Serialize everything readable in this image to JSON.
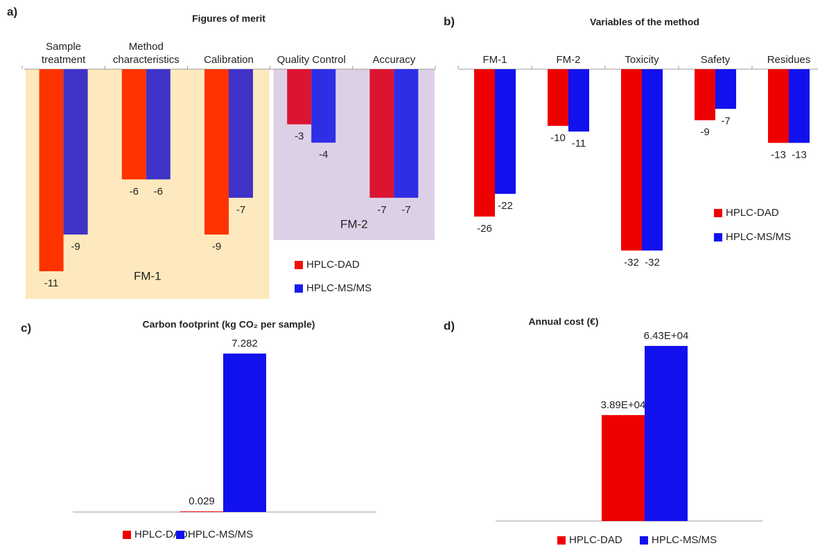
{
  "chart_data": [
    {
      "type": "bar",
      "panel_label": "a)",
      "title": "Figures of merit",
      "categories": [
        "Sample treatment",
        "Method characteristics",
        "Calibration",
        "Quality Control",
        "Accuracy"
      ],
      "groups": [
        {
          "label": "FM-1",
          "start": 0,
          "end": 2,
          "color": "#fde9bd"
        },
        {
          "label": "FM-2",
          "start": 3,
          "end": 4,
          "color": "#ddd0e6"
        }
      ],
      "series": [
        {
          "name": "HPLC-DAD",
          "color": "#ee1111",
          "colors": [
            "#ff3300",
            "#ff3300",
            "#ff3300",
            "#dc1432",
            "#dc1432"
          ],
          "values": [
            -11,
            -6,
            -9,
            -3,
            -7
          ]
        },
        {
          "name": "HPLC-MS/MS",
          "color": "#1a1aee",
          "colors": [
            "#3f33c8",
            "#3f33c8",
            "#3f33c8",
            "#2e2ee6",
            "#2e2ee6"
          ],
          "values": [
            -9,
            -6,
            -7,
            -4,
            -7
          ]
        }
      ],
      "ylim": [
        -12,
        0
      ]
    },
    {
      "type": "bar",
      "panel_label": "b)",
      "title": "Variables of the method",
      "categories": [
        "FM-1",
        "FM-2",
        "Toxicity",
        "Safety",
        "Residues"
      ],
      "series": [
        {
          "name": "HPLC-DAD",
          "color": "#ee0000",
          "values": [
            -26,
            -10,
            -32,
            -9,
            -13
          ]
        },
        {
          "name": "HPLC-MS/MS",
          "color": "#1111ee",
          "values": [
            -22,
            -11,
            -32,
            -7,
            -13
          ]
        }
      ],
      "ylim": [
        -34,
        0
      ]
    },
    {
      "type": "bar",
      "panel_label": "c)",
      "title": "Carbon footprint (kg CO₂ per sample)",
      "categories": [
        null
      ],
      "series": [
        {
          "name": "HPLC-DAD",
          "color": "#ee0000",
          "values": [
            0.029
          ]
        },
        {
          "name": "HPLC-MS/MS",
          "color": "#1111ee",
          "values": [
            7.282
          ]
        }
      ],
      "ylim": [
        0,
        8
      ]
    },
    {
      "type": "bar",
      "panel_label": "d)",
      "title": "Annual cost (€)",
      "categories": [
        null
      ],
      "series": [
        {
          "name": "HPLC-DAD",
          "color": "#ee0000",
          "values": [
            38900
          ],
          "value_labels": [
            "3.89E+04"
          ]
        },
        {
          "name": "HPLC-MS/MS",
          "color": "#1111ee",
          "values": [
            64300
          ],
          "value_labels": [
            "6.43E+04"
          ]
        }
      ],
      "ylim": [
        0,
        70000
      ]
    }
  ]
}
